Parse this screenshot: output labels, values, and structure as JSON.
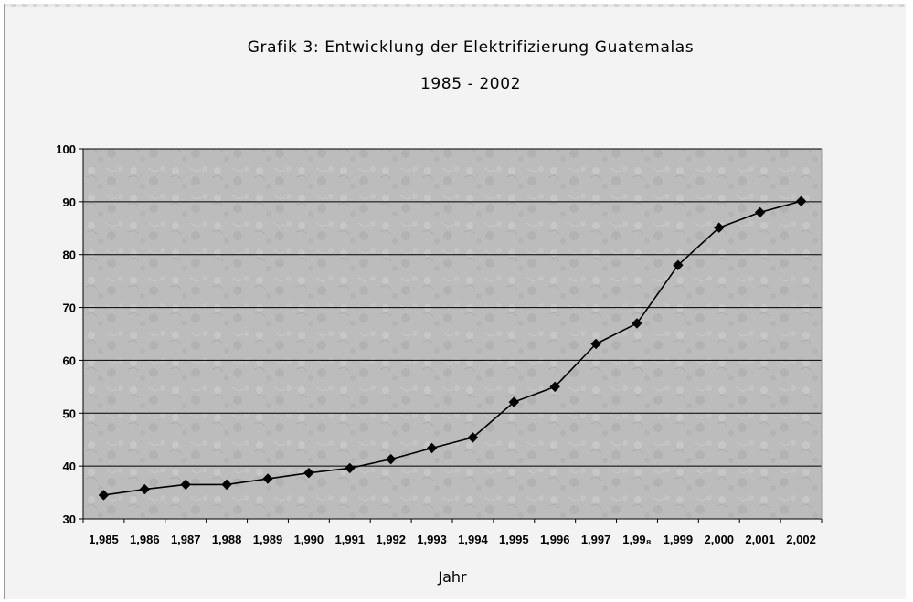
{
  "chart_data": {
    "type": "line",
    "title": "Grafik 3: Entwicklung der Elektrifizierung Guatemalas",
    "subtitle": "1985 - 2002",
    "xlabel": "Jahr",
    "ylabel": "",
    "categories": [
      "1,985",
      "1,986",
      "1,987",
      "1,988",
      "1,989",
      "1,990",
      "1,991",
      "1,992",
      "1,993",
      "1,994",
      "1,995",
      "1,996",
      "1,997",
      "1,99₈",
      "1,999",
      "2,000",
      "2,001",
      "2,002"
    ],
    "series": [
      {
        "values": [
          34.5,
          35.6,
          36.5,
          36.5,
          37.6,
          38.7,
          39.6,
          41.3,
          43.4,
          45.4,
          52.1,
          55.0,
          63.1,
          67.0,
          78.0,
          85.1,
          88.0,
          90.1
        ],
        "color": "#000000",
        "marker": "diamond"
      }
    ],
    "ylim": [
      30,
      100
    ],
    "yticks": [
      30,
      40,
      50,
      60,
      70,
      80,
      90,
      100
    ],
    "grid": true,
    "legend": "none"
  },
  "colors": {
    "plot_background": "#bdbdbd",
    "gridline": "#000000",
    "line": "#000000",
    "frame_background": "#f3f3f3"
  }
}
